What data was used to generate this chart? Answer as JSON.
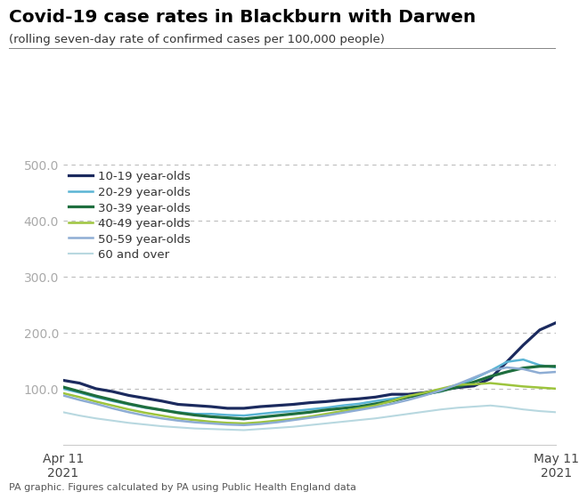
{
  "title": "Covid-19 case rates in Blackburn with Darwen",
  "subtitle": "(rolling seven-day rate of confirmed cases per 100,000 people)",
  "footer": "PA graphic. Figures calculated by PA using Public Health England data",
  "xlabel_left": "Apr 11\n2021",
  "xlabel_right": "May 11\n2021",
  "ylim": [
    0,
    500
  ],
  "yticks": [
    100.0,
    200.0,
    300.0,
    400.0,
    500.0
  ],
  "series": {
    "10-19 year-olds": {
      "color": "#1b2a5e",
      "linewidth": 2.3,
      "values": [
        115,
        110,
        100,
        95,
        88,
        83,
        78,
        72,
        70,
        68,
        65,
        65,
        68,
        70,
        72,
        75,
        77,
        80,
        82,
        85,
        90,
        90,
        93,
        98,
        102,
        105,
        118,
        148,
        178,
        205,
        218
      ]
    },
    "20-29 year-olds": {
      "color": "#5ab4d4",
      "linewidth": 1.8,
      "values": [
        100,
        93,
        85,
        78,
        72,
        66,
        62,
        58,
        55,
        55,
        53,
        52,
        55,
        58,
        60,
        63,
        66,
        70,
        73,
        78,
        82,
        87,
        90,
        95,
        105,
        118,
        132,
        148,
        152,
        142,
        138
      ]
    },
    "30-39 year-olds": {
      "color": "#1e6e3e",
      "linewidth": 2.3,
      "values": [
        103,
        95,
        87,
        80,
        73,
        67,
        62,
        57,
        53,
        50,
        48,
        46,
        49,
        52,
        55,
        58,
        62,
        65,
        68,
        73,
        78,
        85,
        90,
        96,
        103,
        112,
        122,
        130,
        137,
        140,
        140
      ]
    },
    "40-49 year-olds": {
      "color": "#9dc43d",
      "linewidth": 1.8,
      "values": [
        92,
        85,
        77,
        70,
        63,
        57,
        52,
        47,
        44,
        41,
        39,
        38,
        40,
        43,
        46,
        50,
        55,
        60,
        65,
        70,
        78,
        87,
        93,
        100,
        107,
        108,
        110,
        107,
        104,
        102,
        100
      ]
    },
    "50-59 year-olds": {
      "color": "#8eadd4",
      "linewidth": 1.8,
      "values": [
        88,
        80,
        73,
        65,
        58,
        52,
        47,
        43,
        40,
        38,
        36,
        35,
        37,
        40,
        44,
        48,
        52,
        57,
        62,
        67,
        73,
        80,
        88,
        97,
        108,
        120,
        132,
        138,
        135,
        128,
        130
      ]
    },
    "60 and over": {
      "color": "#b8d8e0",
      "linewidth": 1.5,
      "values": [
        58,
        52,
        47,
        43,
        39,
        36,
        33,
        31,
        29,
        28,
        27,
        26,
        28,
        30,
        32,
        35,
        38,
        41,
        44,
        47,
        51,
        55,
        59,
        63,
        66,
        68,
        70,
        67,
        63,
        60,
        58
      ]
    }
  }
}
